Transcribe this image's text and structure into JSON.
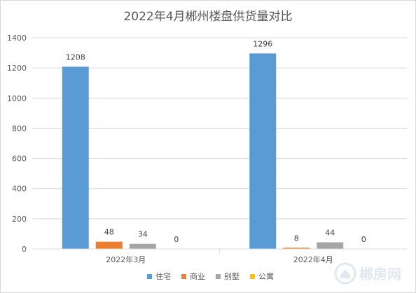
{
  "chart_data": {
    "type": "bar",
    "title": "2022年4月郴州楼盘供货量对比",
    "categories": [
      "2022年3月",
      "2022年4月"
    ],
    "series": [
      {
        "name": "住宅",
        "values": [
          1208,
          1296
        ],
        "color": "#5b9bd5"
      },
      {
        "name": "商业",
        "values": [
          48,
          8
        ],
        "color": "#ed7d31"
      },
      {
        "name": "别墅",
        "values": [
          34,
          44
        ],
        "color": "#a5a5a5"
      },
      {
        "name": "公寓",
        "values": [
          0,
          0
        ],
        "color": "#ffc000"
      }
    ],
    "ylim": [
      0,
      1400
    ],
    "yticks": [
      0,
      200,
      400,
      600,
      800,
      1000,
      1200,
      1400
    ],
    "grid": true,
    "legend_position": "bottom"
  },
  "watermark": {
    "text": "郴房网",
    "icon": "house-logo-icon"
  }
}
